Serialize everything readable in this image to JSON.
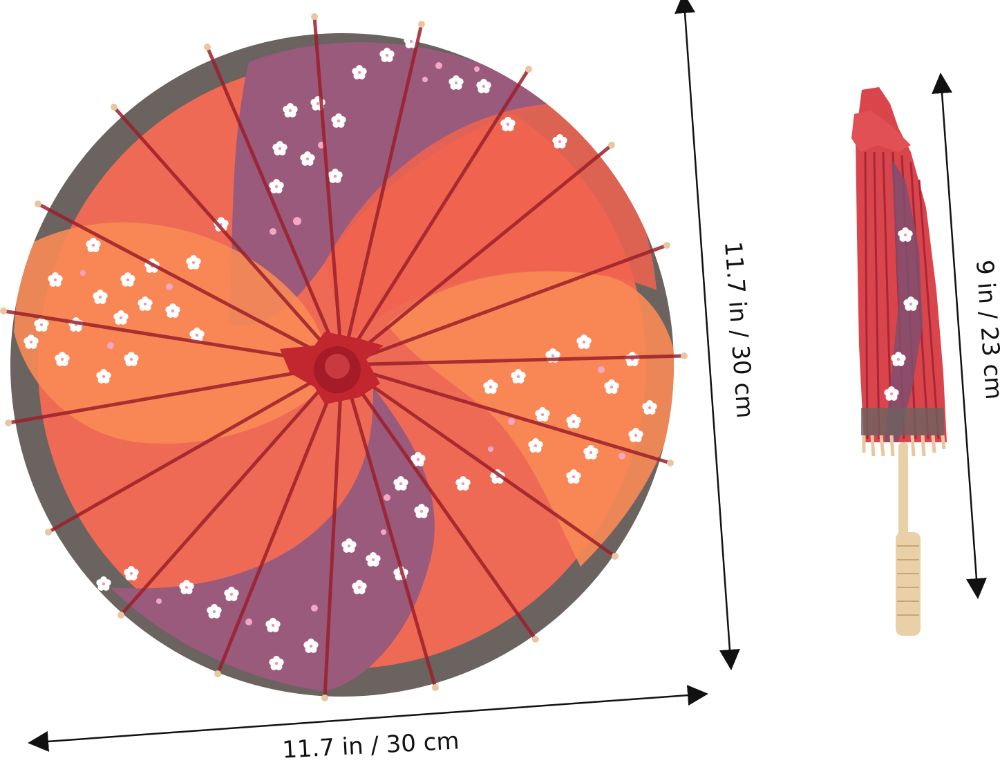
{
  "product": {
    "open_umbrella": {
      "name": "open-paper-parasol",
      "colors": {
        "canopy": "#ef6a55",
        "orange_petal": "#f98a55",
        "purple_band": "#9a5a7c",
        "rim": "#6b6360",
        "rib": "#9c1f2a",
        "flower": "#ffffff",
        "flower_pink": "#f4a6c4"
      }
    },
    "closed_umbrella": {
      "name": "closed-paper-parasol",
      "colors": {
        "canopy": "#d9454a",
        "stripe": "#7f4f70",
        "handle": "#ead0a6"
      }
    }
  },
  "dimensions": {
    "width_label": "11.7 in / 30 cm",
    "height_label": "11.7 in / 30 cm",
    "closed_length_label": "9 in / 23 cm",
    "arrow_color": "#111111"
  }
}
